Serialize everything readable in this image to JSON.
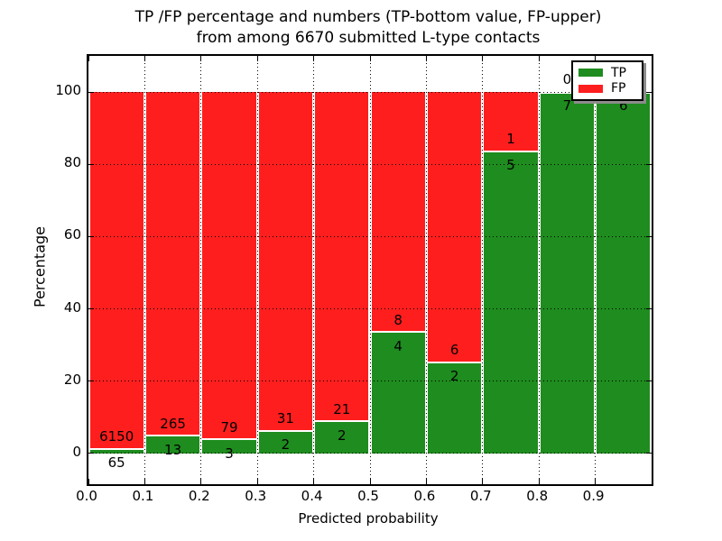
{
  "title": {
    "line1": "TP /FP percentage and numbers (TP-bottom value, FP-upper)",
    "line2": "from among 6670 submitted L-type contacts"
  },
  "axes": {
    "xlabel": "Predicted probability",
    "ylabel": "Percentage",
    "x_tick_labels": [
      "0.0",
      "0.1",
      "0.2",
      "0.3",
      "0.4",
      "0.5",
      "0.6",
      "0.7",
      "0.8",
      "0.9"
    ],
    "y_tick_labels": [
      "0",
      "20",
      "40",
      "60",
      "80",
      "100"
    ],
    "y_tick_values": [
      0,
      20,
      40,
      60,
      80,
      100
    ]
  },
  "legend": {
    "position": "upper-right",
    "items": [
      {
        "label": "TP",
        "color": "#1e8c1e"
      },
      {
        "label": "FP",
        "color": "#ff1e1e"
      }
    ]
  },
  "colors": {
    "tp": "#1e8c1e",
    "fp": "#ff1e1e",
    "background": "#ffffff",
    "grid": "#000000",
    "text": "#000000",
    "legend_shadow": "#8c8c8c",
    "bar_edge": "#ffffff"
  },
  "chart_data": {
    "type": "bar",
    "stacked": true,
    "normalized_to_percent": true,
    "title": "TP /FP percentage and numbers (TP-bottom value, FP-upper) from among 6670 submitted L-type contacts",
    "xlabel": "Predicted probability",
    "ylabel": "Percentage",
    "xlim": [
      0.0,
      1.0
    ],
    "ylim_display": [
      -8.5,
      110
    ],
    "grid": "dotted, horizontal lines drawn over bars",
    "legend_position": "upper right",
    "total_contacts": 6670,
    "bin_width": 0.1,
    "categories": [
      "0.0-0.1",
      "0.1-0.2",
      "0.2-0.3",
      "0.3-0.4",
      "0.4-0.5",
      "0.5-0.6",
      "0.6-0.7",
      "0.7-0.8",
      "0.8-0.9",
      "0.9-1.0"
    ],
    "series": [
      {
        "name": "TP",
        "values": [
          65,
          13,
          3,
          2,
          2,
          4,
          2,
          5,
          7,
          6
        ]
      },
      {
        "name": "FP",
        "values": [
          6150,
          265,
          79,
          31,
          21,
          8,
          6,
          1,
          0,
          0
        ]
      }
    ],
    "tp_percent": [
      1.05,
      4.68,
      3.66,
      6.06,
      8.7,
      33.33,
      25.0,
      83.33,
      100.0,
      100.0
    ],
    "annotation_note": "TP count printed just below each green/red boundary, FP count just above it"
  }
}
